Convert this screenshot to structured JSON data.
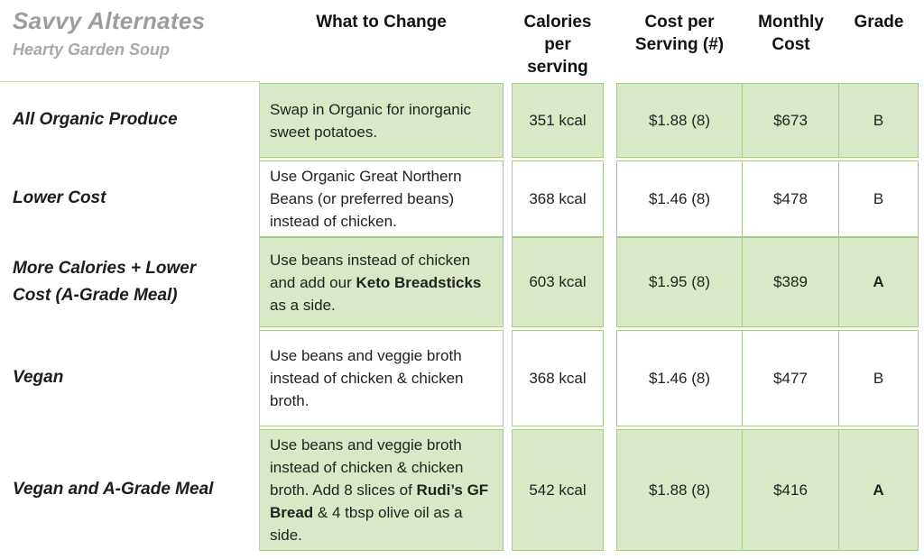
{
  "header": {
    "title": "Savvy Alternates",
    "subtitle": "Hearty Garden Soup",
    "columns": [
      "What to Change",
      "Calories per serving",
      "Cost per Serving (#)",
      "Monthly Cost",
      "Grade"
    ]
  },
  "table": {
    "rows": [
      {
        "label": "All Organic Produce",
        "change": [
          {
            "text": "Swap in Organic for inorganic sweet potatoes.",
            "bold": false
          }
        ],
        "calories": "351 kcal",
        "cost_per_serving": "$1.88 (8)",
        "monthly_cost": "$673",
        "grade": "B",
        "grade_bold": false,
        "highlighted": true
      },
      {
        "label": "Lower Cost",
        "change": [
          {
            "text": "Use Organic Great Northern Beans (or preferred beans) instead of chicken.",
            "bold": false
          }
        ],
        "calories": "368 kcal",
        "cost_per_serving": "$1.46 (8)",
        "monthly_cost": "$478",
        "grade": "B",
        "grade_bold": false,
        "highlighted": false
      },
      {
        "label": "More Calories + Lower Cost (A-Grade Meal)",
        "change": [
          {
            "text": "Use beans instead of chicken and add our ",
            "bold": false
          },
          {
            "text": "Keto Breadsticks",
            "bold": true
          },
          {
            "text": " as a side.",
            "bold": false
          }
        ],
        "calories": "603 kcal",
        "cost_per_serving": "$1.95 (8)",
        "monthly_cost": "$389",
        "grade": "A",
        "grade_bold": true,
        "highlighted": true
      },
      {
        "label": "Vegan",
        "change": [
          {
            "text": "Use beans and veggie broth instead of chicken & chicken broth.",
            "bold": false
          }
        ],
        "calories": "368 kcal",
        "cost_per_serving": "$1.46 (8)",
        "monthly_cost": "$477",
        "grade": "B",
        "grade_bold": false,
        "highlighted": false
      },
      {
        "label": "Vegan and A-Grade Meal",
        "change": [
          {
            "text": "Use beans and veggie broth instead of chicken & chicken broth. Add 8 slices of ",
            "bold": false
          },
          {
            "text": "Rudi’s GF Bread",
            "bold": true
          },
          {
            "text": " & 4 tbsp olive oil as a side.",
            "bold": false
          }
        ],
        "calories": "542 kcal",
        "cost_per_serving": "$1.88 (8)",
        "monthly_cost": "$416",
        "grade": "A",
        "grade_bold": true,
        "highlighted": true
      }
    ]
  },
  "colors": {
    "highlight_green": "#d9e9c7",
    "border_green": "#a9c98c",
    "divider_green": "#b9d4a0",
    "title_gray": "#9d9d9d",
    "text_black": "#1f1f1f"
  }
}
